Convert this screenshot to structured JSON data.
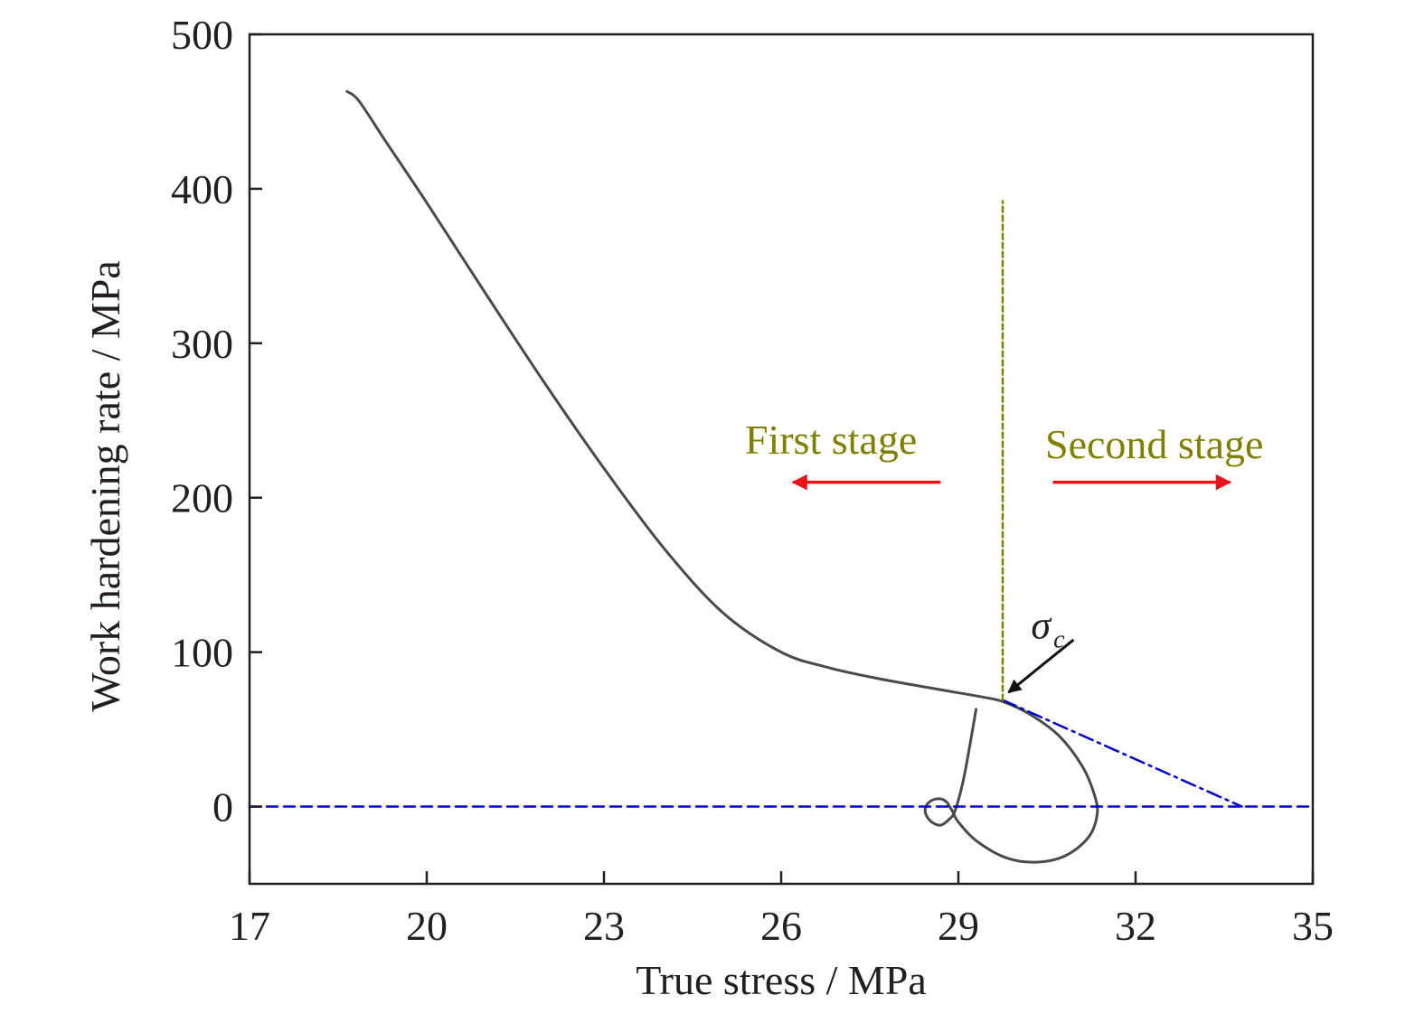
{
  "chart_data": {
    "type": "line",
    "xlabel": "True stress / MPa",
    "ylabel": "Work hardening rate / MPa",
    "xlim": [
      17,
      35
    ],
    "ylim": [
      -50,
      500
    ],
    "xticks": [
      17,
      20,
      23,
      26,
      29,
      32,
      35
    ],
    "yticks": [
      0,
      100,
      200,
      300,
      400,
      500
    ],
    "grid": false,
    "series": [
      {
        "name": "Work hardening curve",
        "color": "#4a4a4a",
        "x": [
          18.65,
          18.85,
          19.3,
          20.0,
          21.0,
          22.0,
          23.0,
          24.0,
          25.0,
          26.0,
          26.8,
          27.5,
          28.2,
          28.8,
          29.4,
          29.75,
          30.2,
          30.7,
          31.1,
          31.3,
          31.35,
          31.2,
          30.8,
          30.3,
          29.8,
          29.3,
          29.0,
          28.9,
          28.85,
          28.8,
          28.7,
          28.55,
          28.45,
          28.45,
          28.55,
          28.7,
          28.85,
          28.95,
          29.1,
          29.3
        ],
        "y": [
          463,
          457,
          431,
          391,
          332,
          274,
          219,
          168,
          126,
          100,
          90,
          84,
          79,
          75,
          71,
          68,
          60,
          46,
          26,
          8,
          -5,
          -20,
          -32,
          -36,
          -33,
          -22,
          -10,
          -3,
          0,
          3,
          5,
          4,
          0,
          -5,
          -10,
          -12,
          -8,
          -2,
          20,
          63
        ]
      },
      {
        "name": "zero line",
        "color": "#0000cc",
        "style": "dashed",
        "x": [
          17,
          35
        ],
        "y": [
          0,
          0
        ]
      },
      {
        "name": "extrapolation",
        "color": "#0000cc",
        "style": "dash-dot",
        "x": [
          29.75,
          33.8
        ],
        "y": [
          69,
          0
        ]
      },
      {
        "name": "critical stress marker",
        "color": "#808000",
        "style": "dotted",
        "x": [
          29.75,
          29.75
        ],
        "y": [
          69,
          392
        ]
      }
    ],
    "annotations": {
      "first_stage": {
        "text": "First stage",
        "x": 28.3,
        "y": 238
      },
      "second_stage": {
        "text": "Second stage",
        "x": 30.5,
        "y": 235
      },
      "sigma": {
        "symbol": "σ",
        "subscript": "c",
        "x": 30.2,
        "y": 116
      },
      "arrow_left": {
        "x_from": 28.7,
        "x_to": 26.2,
        "y": 210
      },
      "arrow_right": {
        "x_from": 30.6,
        "x_to": 33.6,
        "y": 210
      },
      "sigma_arrow": {
        "x_from": 30.95,
        "y_from": 108,
        "x_to": 29.85,
        "y_to": 74
      }
    },
    "colors": {
      "curve": "#4a4a4a",
      "blue_lines": "#0000cc",
      "stage_text": "#808000",
      "arrows": "#e8141c",
      "axis": "#231f20"
    }
  }
}
